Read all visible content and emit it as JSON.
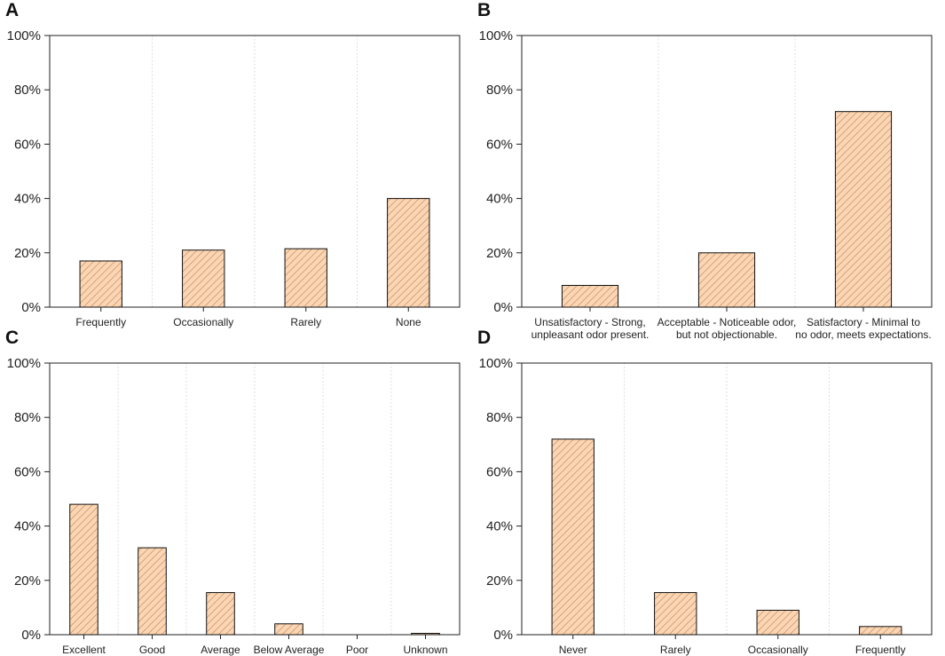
{
  "panels": [
    {
      "letter": "A",
      "chart_data": {
        "type": "bar",
        "categories": [
          "Frequently",
          "Occasionally",
          "Rarely",
          "None"
        ],
        "values": [
          17,
          21,
          21.5,
          40
        ],
        "ylim": [
          0,
          100
        ],
        "yticks": [
          "0%",
          "20%",
          "40%",
          "60%",
          "80%",
          "100%"
        ],
        "grid": "vertical-dotted",
        "bar_color": "#fbd6b4",
        "hatch_color": "#c98d62"
      }
    },
    {
      "letter": "B",
      "chart_data": {
        "type": "bar",
        "categories": [
          [
            "Unsatisfactory - Strong,",
            "unpleasant odor present."
          ],
          [
            "Acceptable - Noticeable odor,",
            "but not objectionable."
          ],
          [
            "Satisfactory - Minimal to",
            "no odor, meets expectations."
          ]
        ],
        "values": [
          8,
          20,
          72
        ],
        "ylim": [
          0,
          100
        ],
        "yticks": [
          "0%",
          "20%",
          "40%",
          "60%",
          "80%",
          "100%"
        ],
        "grid": "vertical-dotted",
        "bar_color": "#fbd6b4",
        "hatch_color": "#c98d62"
      }
    },
    {
      "letter": "C",
      "chart_data": {
        "type": "bar",
        "categories": [
          "Excellent",
          "Good",
          "Average",
          "Below Average",
          "Poor",
          "Unknown"
        ],
        "values": [
          48,
          32,
          15.5,
          4,
          0,
          0.5
        ],
        "ylim": [
          0,
          100
        ],
        "yticks": [
          "0%",
          "20%",
          "40%",
          "60%",
          "80%",
          "100%"
        ],
        "grid": "vertical-dotted",
        "bar_color": "#fbd6b4",
        "hatch_color": "#c98d62"
      }
    },
    {
      "letter": "D",
      "chart_data": {
        "type": "bar",
        "categories": [
          "Never",
          "Rarely",
          "Occasionally",
          "Frequently"
        ],
        "values": [
          72,
          15.5,
          9,
          3
        ],
        "ylim": [
          0,
          100
        ],
        "yticks": [
          "0%",
          "20%",
          "40%",
          "60%",
          "80%",
          "100%"
        ],
        "grid": "vertical-dotted",
        "bar_color": "#fbd6b4",
        "hatch_color": "#c98d62"
      }
    }
  ]
}
